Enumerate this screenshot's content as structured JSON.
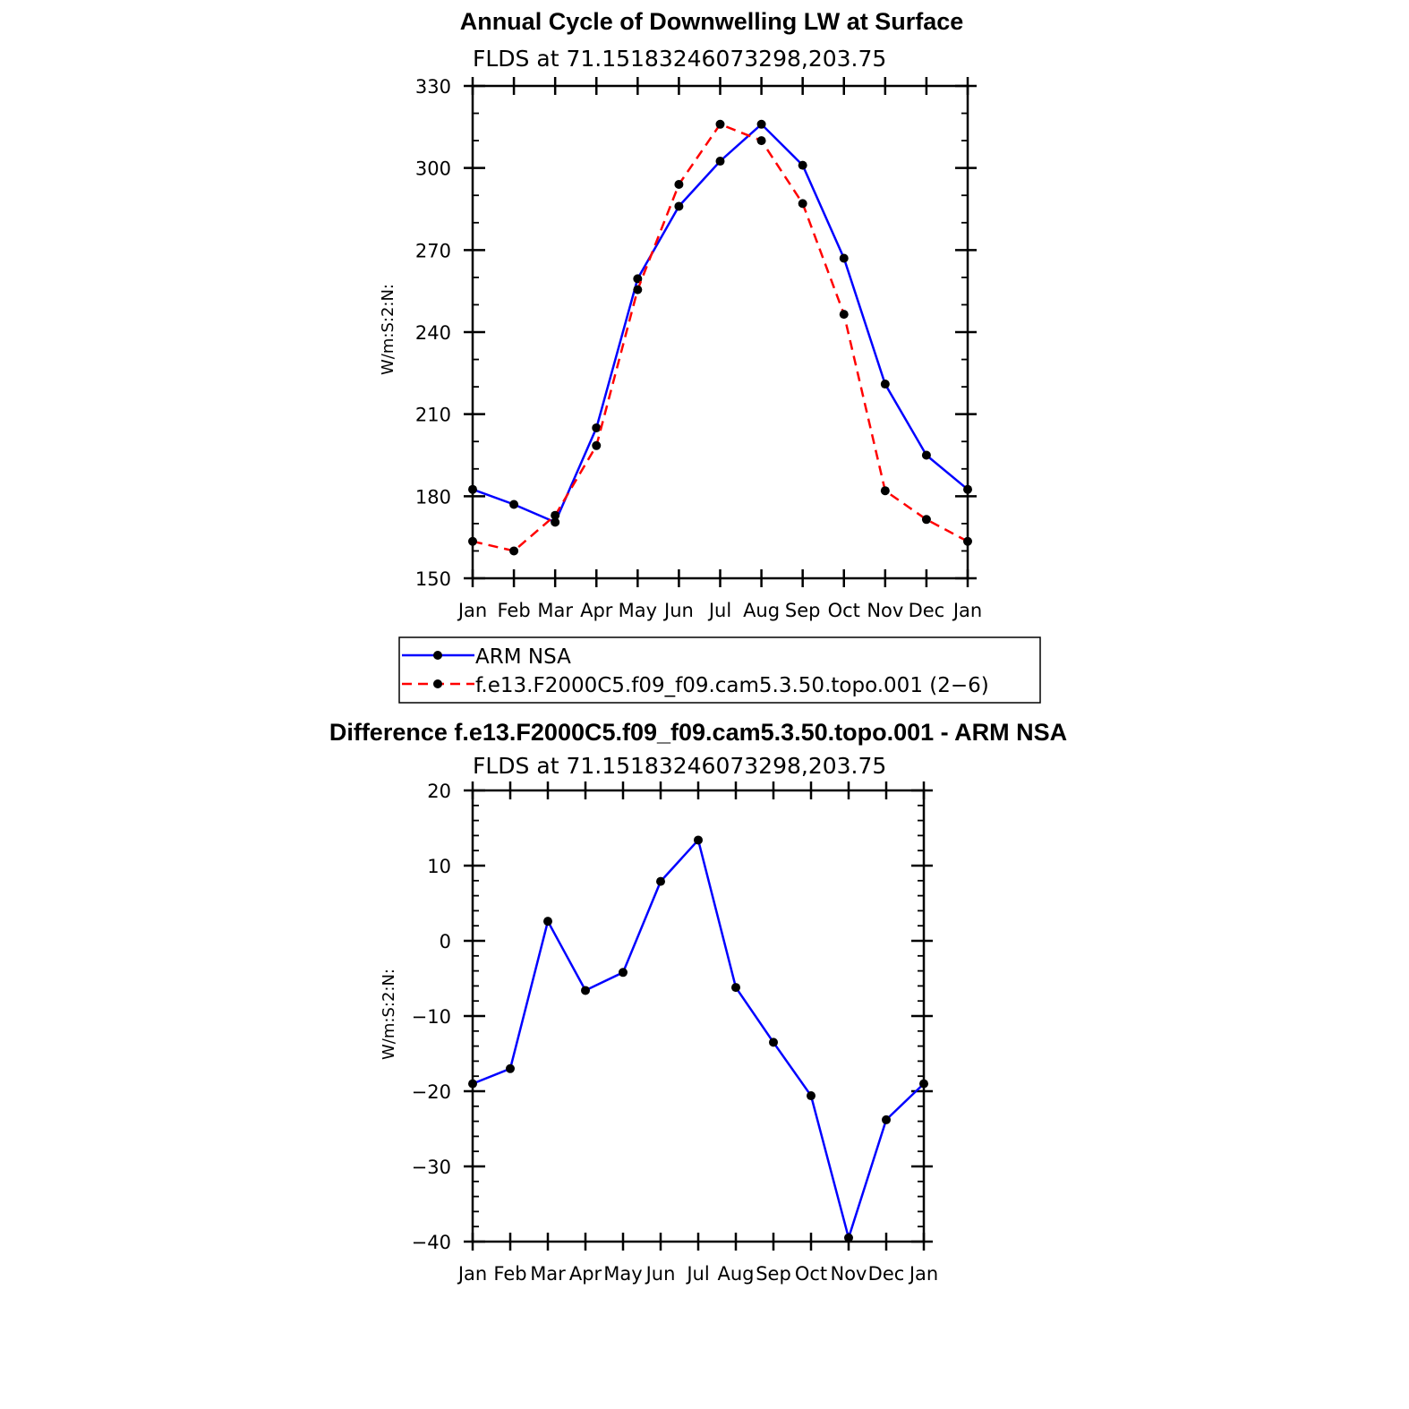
{
  "chart_data": [
    {
      "type": "line",
      "title": "Annual Cycle of Downwelling LW at Surface",
      "subtitle": "FLDS at 71.15183246073298,203.75",
      "xlabel": "",
      "ylabel": "W/m:S:2:N:",
      "categories": [
        "Jan",
        "Feb",
        "Mar",
        "Apr",
        "May",
        "Jun",
        "Jul",
        "Aug",
        "Sep",
        "Oct",
        "Nov",
        "Dec",
        "Jan"
      ],
      "ylim": [
        150,
        330
      ],
      "yticks": [
        "150",
        "180",
        "210",
        "240",
        "270",
        "300",
        "330"
      ],
      "grid": false,
      "series": [
        {
          "name": "ARM NSA",
          "color": "#0000ff",
          "dash": "solid",
          "values": [
            182.5,
            177,
            170.5,
            205,
            259.5,
            286,
            302.5,
            316,
            301,
            267,
            221,
            195,
            182.5
          ]
        },
        {
          "name": "f.e13.F2000C5.f09_f09.cam5.3.50.topo.001 (2−6)",
          "color": "#ff0000",
          "dash": "dashed",
          "values": [
            163.5,
            160,
            173,
            198.5,
            255.5,
            294,
            316,
            310,
            287,
            246.5,
            182,
            171.5,
            163.5
          ]
        }
      ],
      "legend": {
        "placement": "below",
        "entries": [
          "ARM NSA",
          "f.e13.F2000C5.f09_f09.cam5.3.50.topo.001 (2−6)"
        ]
      }
    },
    {
      "type": "line",
      "title": "Difference f.e13.F2000C5.f09_f09.cam5.3.50.topo.001 - ARM NSA",
      "subtitle": "FLDS at 71.15183246073298,203.75",
      "xlabel": "",
      "ylabel": "W/m:S:2:N:",
      "categories": [
        "Jan",
        "Feb",
        "Mar",
        "Apr",
        "May",
        "Jun",
        "Jul",
        "Aug",
        "Sep",
        "Oct",
        "Nov",
        "Dec",
        "Jan"
      ],
      "ylim": [
        -40,
        20
      ],
      "yticks": [
        "−40",
        "−30",
        "−20",
        "−10",
        "0",
        "10",
        "20"
      ],
      "grid": false,
      "series": [
        {
          "name": "Difference",
          "color": "#0000ff",
          "dash": "solid",
          "values": [
            -19,
            -17,
            2.6,
            -6.6,
            -4.2,
            7.9,
            13.4,
            -6.2,
            -13.5,
            -20.6,
            -39.5,
            -23.8,
            -19
          ]
        }
      ]
    }
  ]
}
